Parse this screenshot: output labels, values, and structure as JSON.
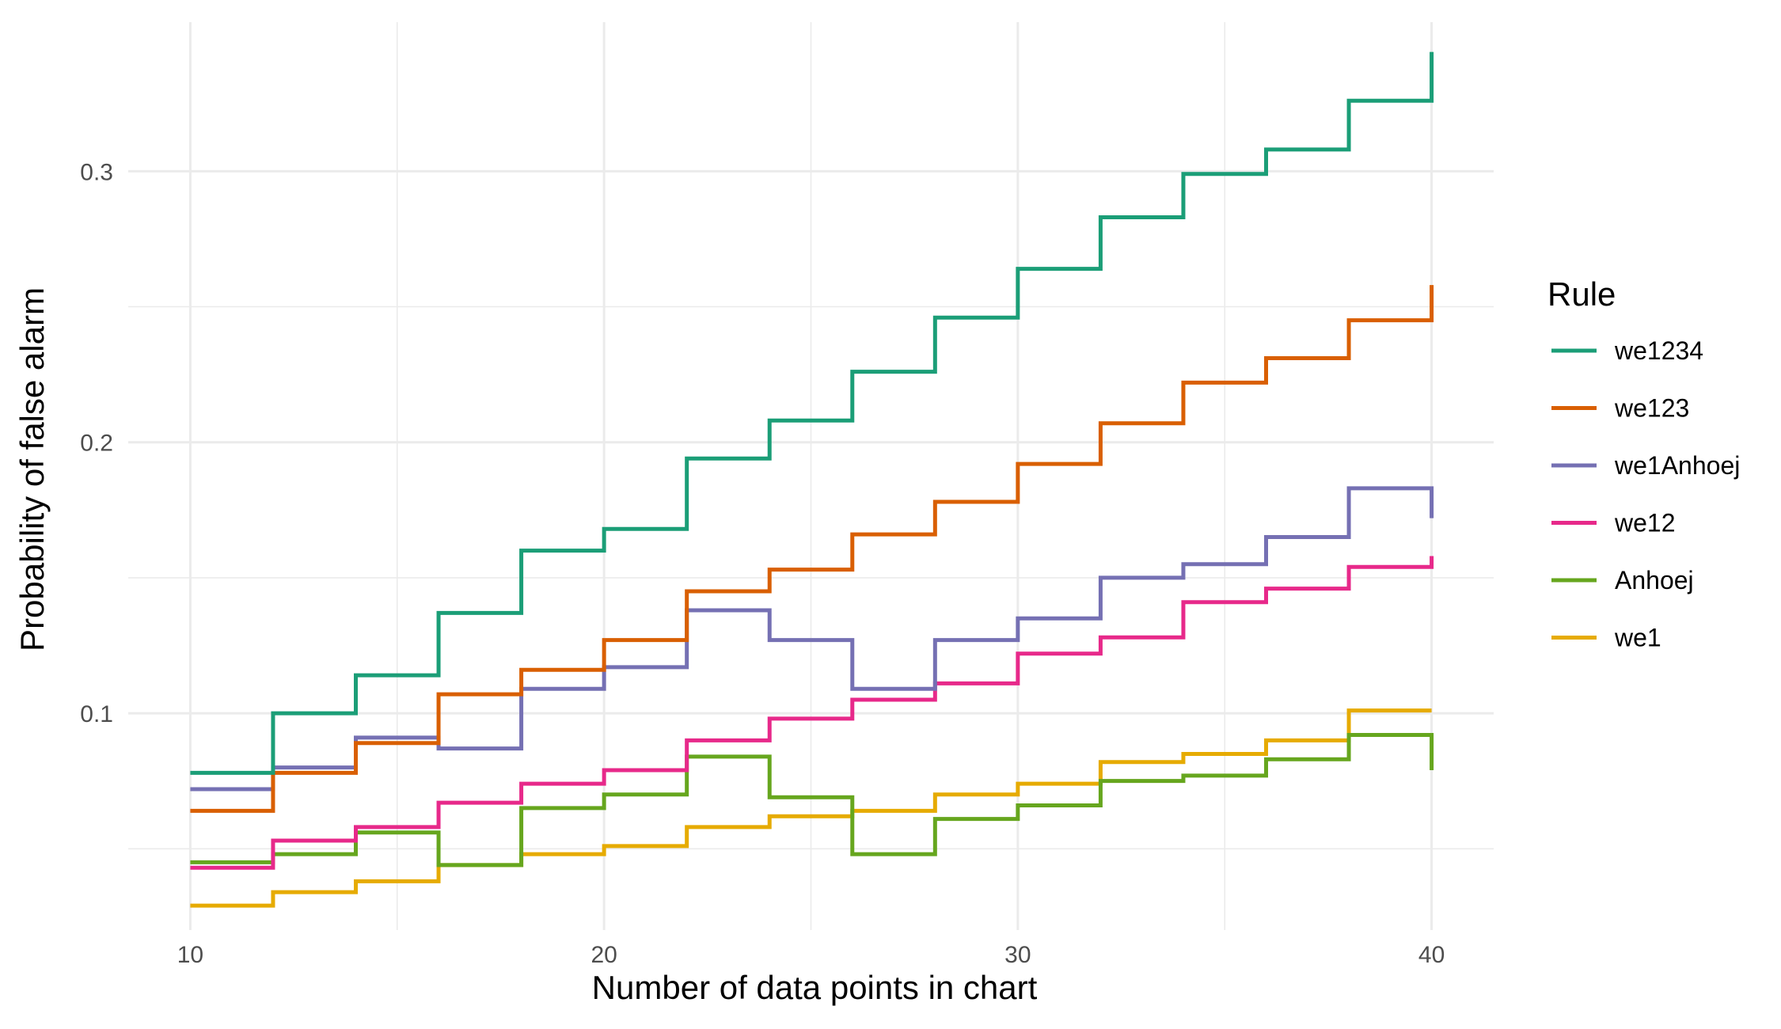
{
  "chart_data": {
    "type": "line",
    "step": true,
    "title": "",
    "xlabel": "Number of data points in chart",
    "ylabel": "Probability of false alarm",
    "xlim": [
      8.5,
      41.5
    ],
    "ylim": [
      0.02,
      0.355
    ],
    "x_ticks": [
      10,
      20,
      30,
      40
    ],
    "x_tick_labels": [
      "10",
      "20",
      "30",
      "40"
    ],
    "y_ticks": [
      0.1,
      0.2,
      0.3
    ],
    "y_tick_labels": [
      "0.1",
      "0.2",
      "0.3"
    ],
    "grid": true,
    "legend": {
      "title": "Rule",
      "position": "right"
    },
    "x": [
      10,
      12,
      14,
      16,
      18,
      20,
      22,
      24,
      26,
      28,
      30,
      32,
      34,
      36,
      38,
      40
    ],
    "series": [
      {
        "name": "we1234",
        "color": "#1b9e77",
        "values": [
          0.078,
          0.1,
          0.114,
          0.137,
          0.16,
          0.168,
          0.194,
          0.208,
          0.226,
          0.246,
          0.264,
          0.283,
          0.299,
          0.308,
          0.326,
          0.344
        ]
      },
      {
        "name": "we123",
        "color": "#d95f02",
        "values": [
          0.064,
          0.078,
          0.089,
          0.107,
          0.116,
          0.127,
          0.145,
          0.153,
          0.166,
          0.178,
          0.192,
          0.207,
          0.222,
          0.231,
          0.245,
          0.258
        ]
      },
      {
        "name": "we1Anhoej",
        "color": "#7570b3",
        "values": [
          0.072,
          0.08,
          0.091,
          0.087,
          0.109,
          0.117,
          0.138,
          0.127,
          0.109,
          0.127,
          0.135,
          0.15,
          0.155,
          0.165,
          0.183,
          0.172
        ]
      },
      {
        "name": "we12",
        "color": "#e7298a",
        "values": [
          0.043,
          0.053,
          0.058,
          0.067,
          0.074,
          0.079,
          0.09,
          0.098,
          0.105,
          0.111,
          0.122,
          0.128,
          0.141,
          0.146,
          0.154,
          0.158
        ]
      },
      {
        "name": "Anhoej",
        "color": "#66a61e",
        "values": [
          0.045,
          0.048,
          0.056,
          0.044,
          0.065,
          0.07,
          0.084,
          0.069,
          0.048,
          0.061,
          0.066,
          0.075,
          0.077,
          0.083,
          0.092,
          0.079
        ]
      },
      {
        "name": "we1",
        "color": "#e6ab02",
        "values": [
          0.029,
          0.034,
          0.038,
          0.044,
          0.048,
          0.051,
          0.058,
          0.062,
          0.064,
          0.07,
          0.074,
          0.082,
          0.085,
          0.09,
          0.101,
          0.101
        ]
      }
    ]
  }
}
